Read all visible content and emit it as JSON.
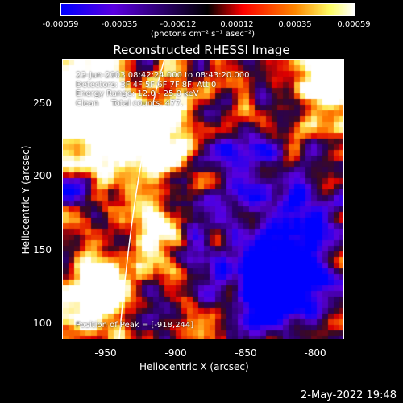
{
  "colorbar": {
    "ticks": [
      "-0.00059",
      "-0.00035",
      "-0.00012",
      "0.00012",
      "0.00035",
      "0.00059"
    ],
    "unit": "(photons cm⁻² s⁻¹ asec⁻²)"
  },
  "title": "Reconstructed RHESSI Image",
  "info": {
    "time": "23-Jun-2003 08:42:24.000 to 08:43:20.000",
    "detectors": "Detectors: 3F 4F 5F 6F 7F 8F, Att 0",
    "energy": "Energy Range: 12.0 - 25.0 keV",
    "method": "Clean     Total counts: 477."
  },
  "peak": "Position of Peak = [-918,244]",
  "axes": {
    "xlabel": "Heliocentric X (arcsec)",
    "ylabel": "Heliocentric Y (arcsec)",
    "xticks": [
      "-950",
      "-900",
      "-850",
      "-800"
    ],
    "yticks": [
      "250",
      "200",
      "150",
      "100"
    ]
  },
  "footer_date": "2-May-2022 19:48"
}
